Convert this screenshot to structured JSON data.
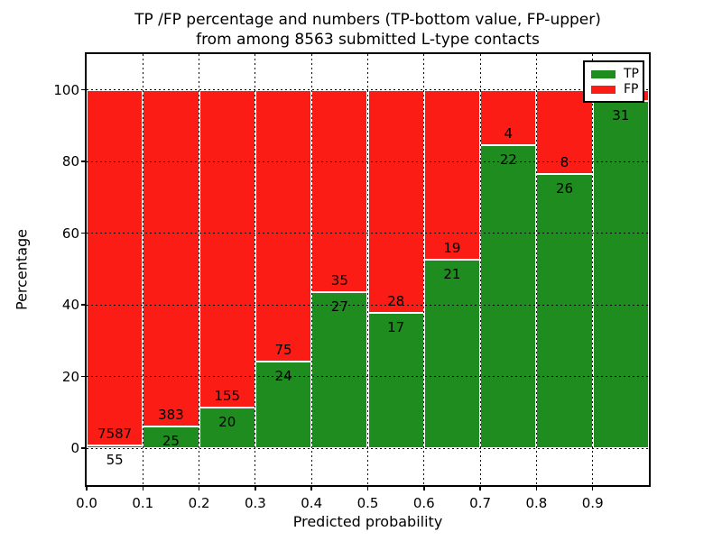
{
  "chart_data": {
    "type": "bar",
    "stacked": true,
    "title_line1": "TP /FP percentage and numbers (TP-bottom value, FP-upper)",
    "title_line2": "from among 8563 submitted L-type contacts",
    "title": "TP /FP percentage and numbers (TP-bottom value, FP-upper) from among 8563 submitted L-type contacts",
    "xlabel": "Predicted probability",
    "ylabel": "Percentage",
    "total_submitted": 8563,
    "bin_start": [
      0.0,
      0.1,
      0.2,
      0.3,
      0.4,
      0.5,
      0.6,
      0.7,
      0.8,
      0.9
    ],
    "bin_width": 0.1,
    "series": [
      {
        "name": "TP",
        "color": "#1f8c1f",
        "pct": [
          0.72,
          6.13,
          11.43,
          24.24,
          43.55,
          37.78,
          52.5,
          84.62,
          76.47,
          96.9
        ],
        "counts": [
          55,
          25,
          20,
          24,
          27,
          17,
          21,
          22,
          26,
          31
        ]
      },
      {
        "name": "FP",
        "color": "#fb1c15",
        "pct": [
          99.28,
          93.87,
          88.57,
          75.76,
          56.45,
          62.22,
          47.5,
          15.38,
          23.53,
          3.1
        ],
        "counts": [
          7587,
          383,
          155,
          75,
          35,
          28,
          19,
          4,
          8,
          null
        ]
      }
    ],
    "bar_edge_color": "#ffffff",
    "grid": "dotted",
    "grid_color": "#000000",
    "xlim": [
      0,
      1
    ],
    "ylim": [
      -10.3,
      110
    ],
    "x_tick_labels": [
      "0.0",
      "0.1",
      "0.2",
      "0.3",
      "0.4",
      "0.5",
      "0.6",
      "0.7",
      "0.8",
      "0.9"
    ],
    "y_ticks": [
      0,
      20,
      40,
      60,
      80,
      100
    ],
    "y_tick_labels": [
      "0",
      "20",
      "40",
      "60",
      "80",
      "100"
    ],
    "legend_position": "upper right",
    "annotation_layout": "FP count above TP/FP boundary, TP count below boundary; FP count of last bin occluded by legend"
  }
}
